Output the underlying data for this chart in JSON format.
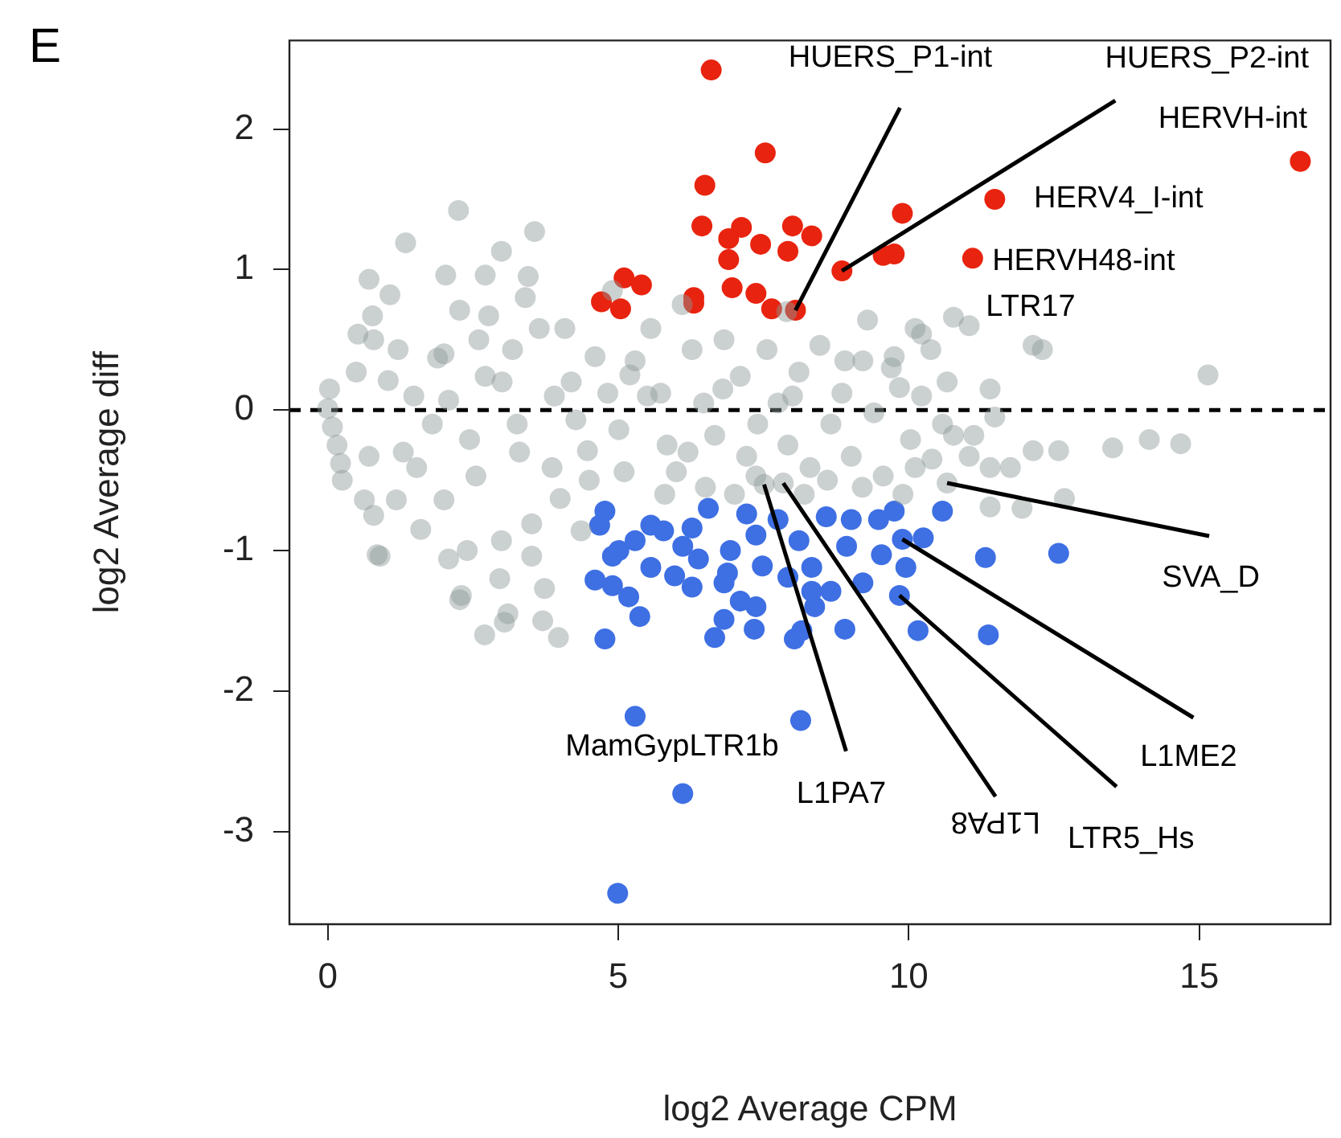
{
  "chart_data": {
    "type": "scatter",
    "xlabel": "log2 Average CPM",
    "ylabel": "log2 Average diff",
    "xlim": [
      -0.66,
      17.26
    ],
    "ylim": [
      -3.66,
      2.63
    ],
    "xticks": [
      0,
      5,
      10,
      15
    ],
    "yticks": [
      -3,
      -2,
      -1,
      0,
      1,
      2
    ],
    "grid": false,
    "legend": false,
    "marker": "circle",
    "ref_lines": [
      {
        "axis": "y",
        "value": 0,
        "color": "#000000",
        "line_style": "dashed"
      }
    ],
    "series": [
      {
        "color": "#8c9896",
        "x": [
          2.25,
          1.34,
          3.56,
          2.99,
          0.71,
          1.07,
          2.03,
          2.71,
          3.45,
          0.77,
          2.27,
          2.77,
          9.29,
          10.77,
          11.04,
          12.14,
          12.3,
          15.15,
          14.14,
          14.68,
          13.51,
          12.14,
          12.58,
          11.48,
          11.4,
          10.66,
          11.75,
          10.66,
          11.4,
          12.68,
          11.95,
          10.11,
          9.75,
          10.22,
          10.58,
          11.04,
          10.11,
          0,
          0.03,
          0.08,
          0.16,
          0.22,
          0.25,
          0.52,
          0.49,
          0.79,
          1.21,
          1.04,
          0.71,
          0.63,
          0.79,
          0.9,
          1.18,
          1.53,
          1.48,
          1.89,
          2.08,
          2,
          2.08,
          2.3,
          2.44,
          2.55,
          2.71,
          2.99,
          2.96,
          3.18,
          3.26,
          3.51,
          3.51,
          3.64,
          3.73,
          3.86,
          4,
          4.08,
          4.19,
          4.27,
          4.47,
          4.36,
          4.6,
          4.82,
          5.01,
          5.1,
          5.29,
          5.56,
          5.73,
          5.84,
          6,
          6.27,
          6.47,
          6.66,
          6.82,
          7.1,
          7.21,
          7.37,
          7.56,
          7.75,
          7.92,
          8.11,
          8.3,
          8.47,
          8.66,
          8.85,
          9.01,
          9.21,
          9.4,
          9.56,
          9.84,
          10.03,
          10.22,
          10.38,
          10.77,
          11.12,
          11.4,
          5.5,
          6.2,
          6.8,
          7.4,
          8,
          8.6,
          9.2,
          9.7,
          6.5,
          7,
          8.2,
          5.8,
          5.2,
          4.5,
          3.9,
          3.3,
          3,
          1.8,
          1.3,
          2.6,
          8.9,
          10.4,
          9.9,
          6.1,
          7.9,
          4.9,
          3.4,
          2,
          1.6,
          2.4,
          3.1,
          2.7,
          3.7,
          3.04,
          3.97,
          2.27,
          0.85,
          7.51,
          7.84
        ],
        "values": [
          1.42,
          1.19,
          1.27,
          1.13,
          0.93,
          0.82,
          0.96,
          0.96,
          0.95,
          0.67,
          0.71,
          0.67,
          0.64,
          0.66,
          0.6,
          0.46,
          0.43,
          0.25,
          -0.21,
          -0.24,
          -0.27,
          -0.29,
          -0.29,
          -0.05,
          0.15,
          0.2,
          -0.41,
          -0.52,
          -0.69,
          -0.63,
          -0.7,
          0.58,
          0.38,
          0.1,
          -0.1,
          -0.33,
          -0.41,
          0.01,
          0.15,
          -0.12,
          -0.25,
          -0.38,
          -0.5,
          0.54,
          0.27,
          0.5,
          0.43,
          0.21,
          -0.33,
          -0.64,
          -0.75,
          -1.04,
          -0.64,
          -0.41,
          0.1,
          0.37,
          0.07,
          -0.64,
          -1.06,
          -1.32,
          -0.21,
          -0.47,
          0.24,
          -0.93,
          -1.2,
          0.43,
          -0.1,
          -0.81,
          -1.04,
          0.58,
          -1.27,
          -0.41,
          -0.63,
          0.58,
          0.2,
          -0.07,
          -0.29,
          -0.86,
          0.38,
          0.12,
          -0.14,
          -0.44,
          0.35,
          0.58,
          0.12,
          -0.25,
          -0.44,
          0.43,
          0.05,
          -0.18,
          0.5,
          0.24,
          -0.33,
          -0.47,
          0.43,
          0.05,
          -0.25,
          0.27,
          -0.41,
          0.46,
          -0.1,
          0.12,
          -0.33,
          0.35,
          -0.02,
          -0.47,
          0.16,
          -0.21,
          0.54,
          0.43,
          -0.18,
          -0.18,
          -0.41,
          0.1,
          -0.3,
          0.15,
          -0.1,
          0.1,
          -0.5,
          -0.55,
          0.3,
          -0.55,
          -0.6,
          -0.6,
          -0.6,
          0.25,
          -0.5,
          0.1,
          -0.3,
          0.2,
          -0.1,
          -0.3,
          0.5,
          0.35,
          -0.35,
          -0.6,
          0.75,
          0.7,
          0.85,
          0.8,
          0.4,
          -0.85,
          -1,
          -1.45,
          -1.6,
          -1.5,
          -1.51,
          -1.62,
          -1.35,
          -1.03,
          -0.53,
          -0.52
        ]
      },
      {
        "color": "#e8230f",
        "x": [
          6.6,
          7.53,
          6.49,
          9.89,
          11.48,
          6.44,
          7.12,
          8,
          6.9,
          8.33,
          7.45,
          7.92,
          6.9,
          9.56,
          9.75,
          11.1,
          8.85,
          5.1,
          5.4,
          6.3,
          6.96,
          7.37,
          4.71,
          5.04,
          6.3,
          7.64,
          8.05,
          16.74
        ],
        "values": [
          2.42,
          1.83,
          1.6,
          1.4,
          1.5,
          1.31,
          1.3,
          1.31,
          1.22,
          1.24,
          1.18,
          1.13,
          1.07,
          1.1,
          1.11,
          1.08,
          0.99,
          0.94,
          0.89,
          0.8,
          0.87,
          0.83,
          0.77,
          0.72,
          0.76,
          0.72,
          0.71,
          1.77
        ]
      },
      {
        "color": "#3e6fe3",
        "x": [
          4.77,
          4.68,
          4.9,
          5.01,
          4.6,
          4.9,
          5.18,
          5.37,
          4.77,
          5.29,
          5.56,
          5.78,
          5.56,
          5.97,
          6.27,
          6.11,
          6.38,
          6.27,
          6.55,
          6.93,
          6.88,
          6.82,
          7.1,
          7.37,
          6.82,
          6.66,
          7.34,
          7.48,
          7.21,
          7.37,
          8.03,
          8.16,
          7.92,
          8.33,
          8.33,
          8.38,
          8.66,
          8.9,
          8.93,
          9.21,
          8.58,
          9.01,
          9.48,
          9.75,
          9.53,
          9.95,
          9.84,
          10.16,
          10.25,
          10.58,
          11.32,
          11.37,
          12.58,
          7.75,
          8.11,
          9.89,
          5.29,
          8.14,
          6.11,
          4.99
        ],
        "values": [
          -0.72,
          -0.82,
          -1.04,
          -1,
          -1.21,
          -1.25,
          -1.33,
          -1.47,
          -1.63,
          -0.93,
          -0.82,
          -0.86,
          -1.12,
          -1.18,
          -1.26,
          -0.97,
          -1.06,
          -0.84,
          -0.7,
          -1,
          -1.16,
          -1.23,
          -1.36,
          -1.4,
          -1.49,
          -1.62,
          -1.56,
          -1.11,
          -0.74,
          -0.89,
          -1.63,
          -1.57,
          -1.19,
          -1.12,
          -1.29,
          -1.4,
          -1.29,
          -1.56,
          -0.97,
          -1.23,
          -0.76,
          -0.78,
          -0.78,
          -0.72,
          -1.03,
          -1.12,
          -1.32,
          -1.57,
          -0.91,
          -0.72,
          -1.05,
          -1.6,
          -1.02,
          -0.78,
          -0.93,
          -0.92,
          -2.18,
          -2.21,
          -2.73,
          -3.44
        ]
      }
    ],
    "annotations": [
      "E",
      {
        "text": "HUERS_P1-int",
        "x": 8.05,
        "y": 0.71
      },
      {
        "text": "HUERS_P2-int",
        "x": 8.85,
        "y": 0.99
      },
      {
        "text": "HERVH-int",
        "x": 16.74,
        "y": 1.77
      },
      {
        "text": "HERV4_I-int",
        "x": 11.48,
        "y": 1.5
      },
      {
        "text": "HERVH48-int",
        "x": 11.1,
        "y": 1.08
      },
      {
        "text": "LTR17",
        "x": 10.77,
        "y": 0.66
      },
      {
        "text": "SVA_D",
        "x": 10.66,
        "y": -0.52
      },
      {
        "text": "L1ME2",
        "x": 9.89,
        "y": -0.92
      },
      {
        "text": "LTR5_Hs",
        "x": 9.84,
        "y": -1.32
      },
      {
        "text": "L1PA8",
        "x": 7.84,
        "y": -0.52
      },
      {
        "text": "L1PA7",
        "x": 7.51,
        "y": -0.53
      },
      {
        "text": "MamGypLTR1b",
        "x": 5.29,
        "y": -2.18
      }
    ]
  }
}
